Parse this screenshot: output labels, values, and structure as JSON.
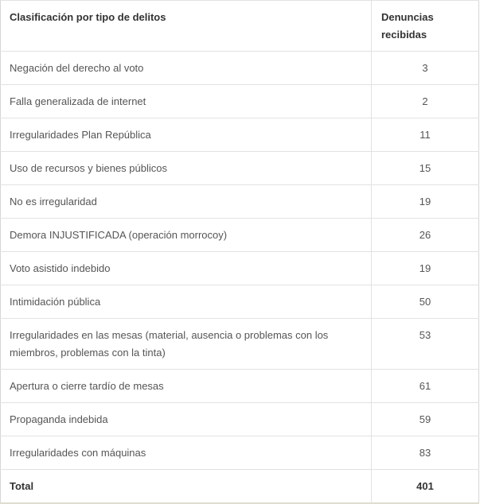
{
  "table": {
    "headers": [
      "Clasificación por tipo de delitos",
      "Denuncias recibidas"
    ],
    "rows": [
      {
        "label": "Negación del derecho al voto",
        "value": "3"
      },
      {
        "label": "Falla generalizada de internet",
        "value": "2"
      },
      {
        "label": "Irregularidades Plan República",
        "value": "11"
      },
      {
        "label": "Uso de recursos y bienes públicos",
        "value": "15"
      },
      {
        "label": "No es irregularidad",
        "value": "19"
      },
      {
        "label": "Demora INJUSTIFICADA (operación morrocoy)",
        "value": "26"
      },
      {
        "label": "Voto asistido indebido",
        "value": "19"
      },
      {
        "label": "Intimidación pública",
        "value": "50"
      },
      {
        "label": "Irregularidades en las mesas (material, ausencia o problemas con los miembros, problemas con la tinta)",
        "value": "53"
      },
      {
        "label": "Apertura o cierre tardío de mesas",
        "value": "61"
      },
      {
        "label": "Propaganda indebida",
        "value": "59"
      },
      {
        "label": "Irregularidades con máquinas",
        "value": "83"
      }
    ],
    "total": {
      "label": "Total",
      "value": "401"
    }
  }
}
